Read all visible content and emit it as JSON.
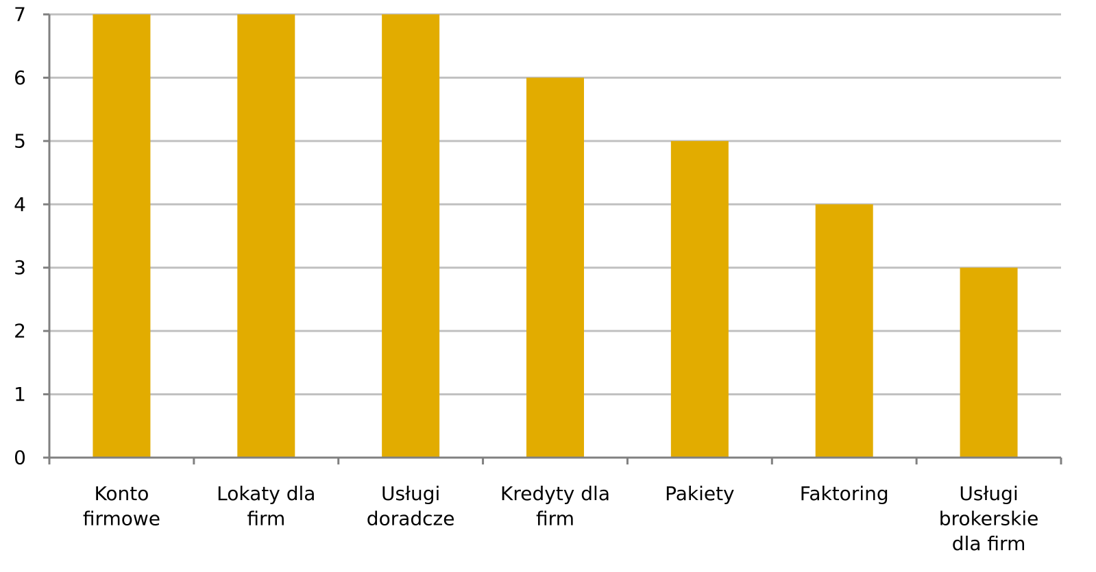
{
  "chart_data": {
    "type": "bar",
    "categories": [
      [
        "Konto",
        "firmowe"
      ],
      [
        "Lokaty dla",
        "firm"
      ],
      [
        "Usługi",
        "doradcze"
      ],
      [
        "Kredyty dla",
        "firm"
      ],
      [
        "Pakiety"
      ],
      [
        "Faktoring"
      ],
      [
        "Usługi",
        "brokerskie",
        "dla firm"
      ]
    ],
    "values": [
      7,
      7,
      7,
      6,
      5,
      4,
      3
    ],
    "ylim": [
      0,
      7
    ],
    "yticks": [
      "0",
      "1",
      "2",
      "3",
      "4",
      "5",
      "6",
      "7"
    ],
    "grid": true,
    "legend": "none",
    "colors": {
      "bar": "#E2AC00",
      "grid": "#C0C0C0",
      "axis": "#808080"
    }
  }
}
